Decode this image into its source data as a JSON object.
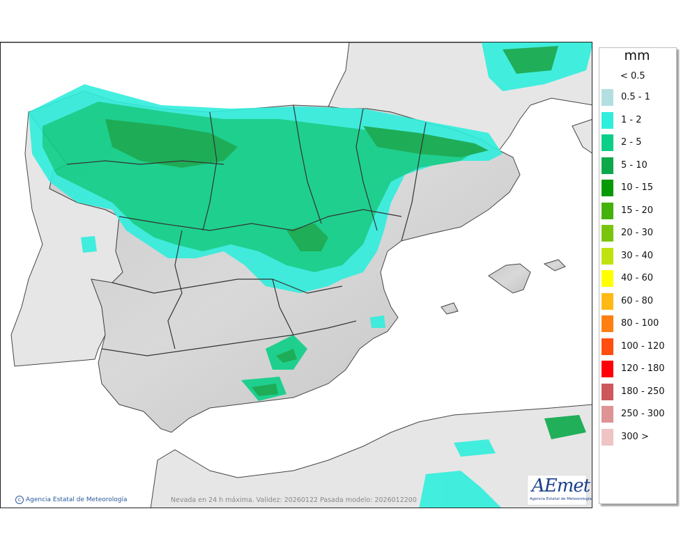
{
  "legend": {
    "title": "mm",
    "lowest_label": "< 0.5",
    "classes": [
      {
        "label": "0.5 - 1",
        "color": "#b3dfe1"
      },
      {
        "label": "1 - 2",
        "color": "#30eedd"
      },
      {
        "label": "2 - 5",
        "color": "#0ccf87"
      },
      {
        "label": "5 - 10",
        "color": "#0ba94a"
      },
      {
        "label": "10 - 15",
        "color": "#069a06"
      },
      {
        "label": "15 - 20",
        "color": "#43b20c"
      },
      {
        "label": "20 - 30",
        "color": "#79c50e"
      },
      {
        "label": "30 - 40",
        "color": "#bfe310"
      },
      {
        "label": "40 - 60",
        "color": "#ffff00"
      },
      {
        "label": "60 - 80",
        "color": "#ffb915"
      },
      {
        "label": "80 - 100",
        "color": "#ff8011"
      },
      {
        "label": "100 - 120",
        "color": "#ff4e0f"
      },
      {
        "label": "120 - 180",
        "color": "#fe0007"
      },
      {
        "label": "180 - 250",
        "color": "#cd585b"
      },
      {
        "label": "250 - 300",
        "color": "#de9394"
      },
      {
        "label": "300 >",
        "color": "#efc4c4"
      }
    ]
  },
  "map": {
    "credit": "Agencia Estatal de Meteorología",
    "footer": "Nevada en 24 h máxima. Validez: 20260122 Pasada modelo: 2026012200",
    "logo_text": "AEmet",
    "logo_subtitle": "Agencia Estatal de Meteorología",
    "colors": {
      "sea": "#ffffff",
      "land_spain": "#cfcfcf",
      "land_other": "#e6e6e6",
      "borders": "#333333"
    }
  }
}
